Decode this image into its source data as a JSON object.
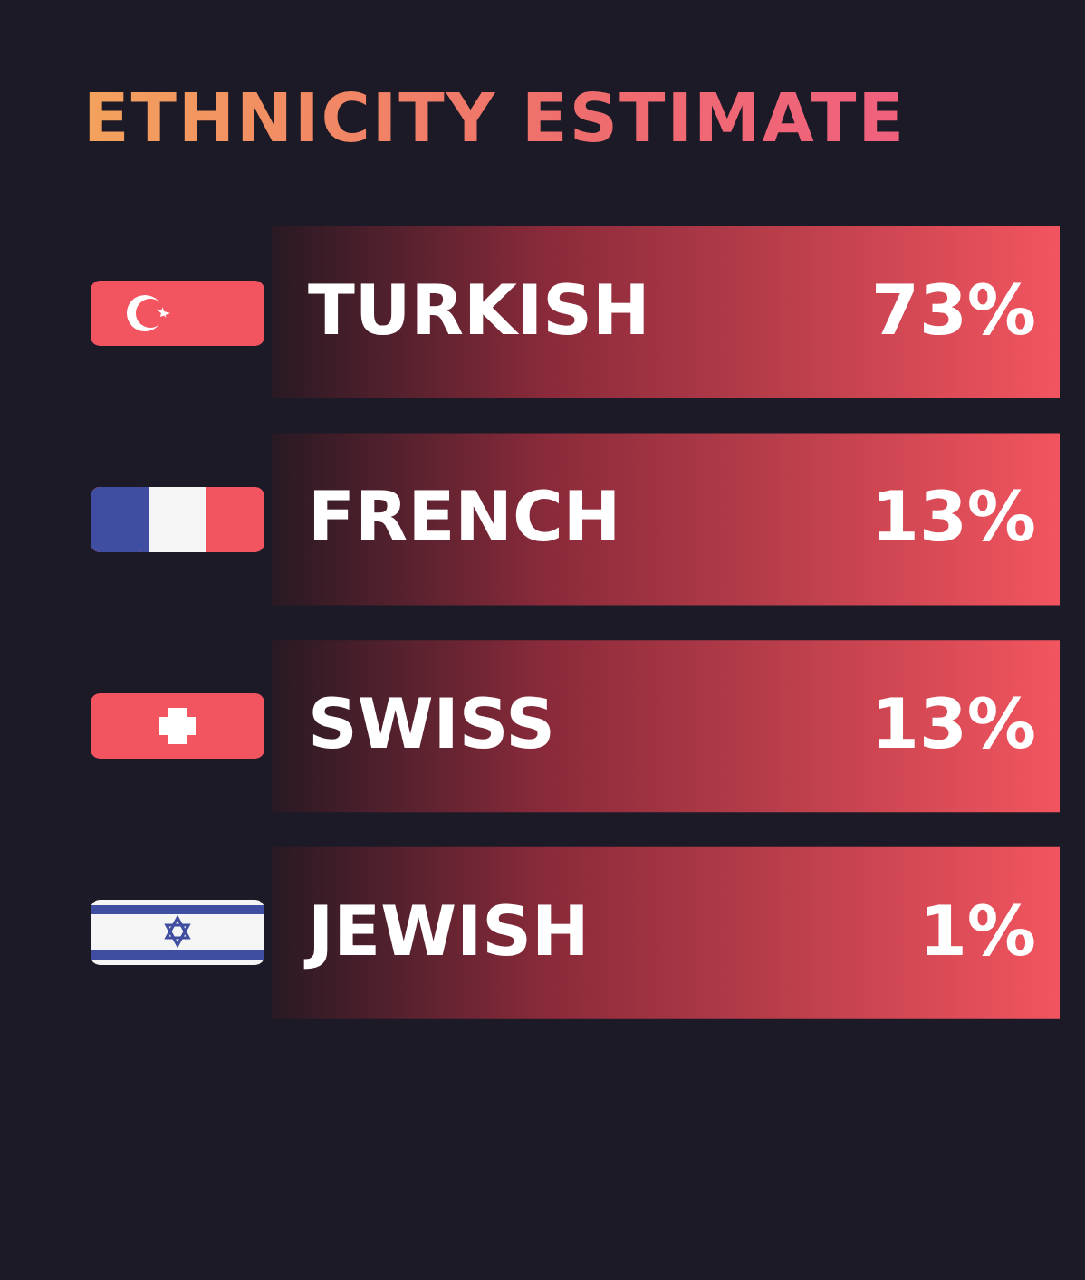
{
  "chart_data": {
    "type": "other",
    "title": "ETHNICITY ESTIMATE",
    "categories": [
      "TURKISH",
      "FRENCH",
      "SWISS",
      "JEWISH"
    ],
    "values": [
      73,
      13,
      13,
      1
    ],
    "value_labels": [
      "73%",
      "13%",
      "13%",
      "1%"
    ]
  }
}
